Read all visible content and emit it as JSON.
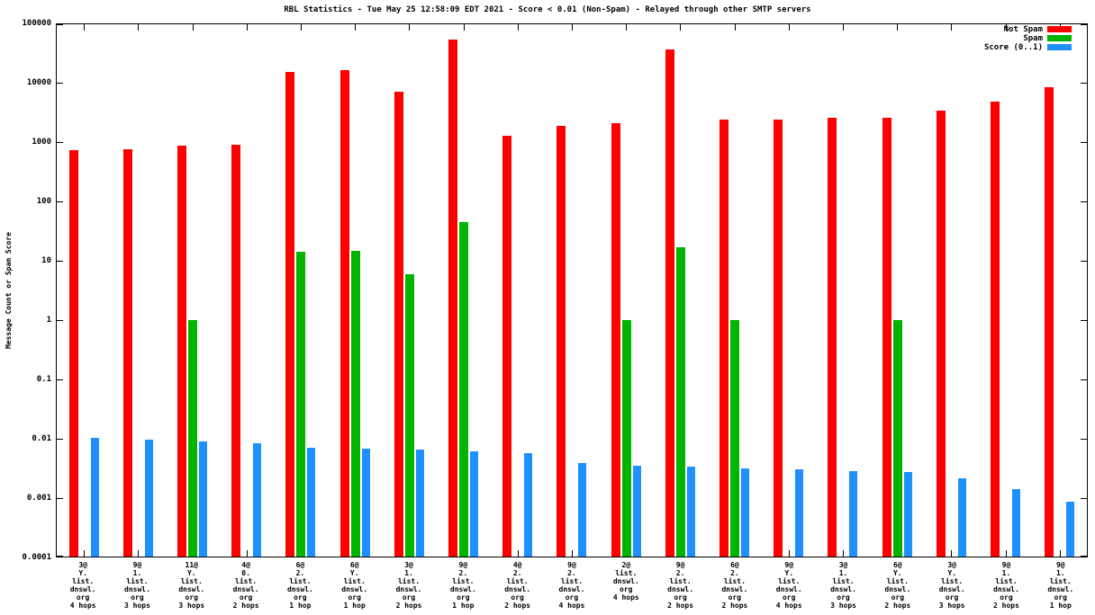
{
  "chart_data": {
    "type": "bar",
    "title": "RBL Statistics - Tue May 25 12:58:09 EDT 2021 - Score < 0.01 (Non-Spam) - Relayed through other SMTP servers",
    "ylabel": "Message Count or Spam Score",
    "xlabel": "",
    "y_scale": "log",
    "ylim": [
      0.0001,
      100000
    ],
    "y_ticks": [
      "100000",
      "10000",
      "1000",
      "100",
      "10",
      "1",
      "0.1",
      "0.01",
      "0.001",
      "0.0001"
    ],
    "grid": false,
    "legend_position": "top-right",
    "background": "#ffffff",
    "categories": [
      [
        "3@",
        "Y.",
        "list.",
        "dnswl.",
        "org",
        "4 hops"
      ],
      [
        "9@",
        "1.",
        "list.",
        "dnswl.",
        "org",
        "3 hops"
      ],
      [
        "11@",
        "Y.",
        "list.",
        "dnswl.",
        "org",
        "3 hops"
      ],
      [
        "4@",
        "0.",
        "list.",
        "dnswl.",
        "org",
        "2 hops"
      ],
      [
        "6@",
        "2.",
        "list.",
        "dnswl.",
        "org",
        "1 hop"
      ],
      [
        "6@",
        "Y.",
        "list.",
        "dnswl.",
        "org",
        "1 hop"
      ],
      [
        "3@",
        "1.",
        "list.",
        "dnswl.",
        "org",
        "2 hops"
      ],
      [
        "9@",
        "2.",
        "list.",
        "dnswl.",
        "org",
        "1 hop"
      ],
      [
        "4@",
        "2.",
        "list.",
        "dnswl.",
        "org",
        "2 hops"
      ],
      [
        "9@",
        "2.",
        "list.",
        "dnswl.",
        "org",
        "4 hops"
      ],
      [
        "2@",
        "list.",
        "dnswl.",
        "org",
        "4 hops"
      ],
      [
        "9@",
        "2.",
        "list.",
        "dnswl.",
        "org",
        "2 hops"
      ],
      [
        "6@",
        "2.",
        "list.",
        "dnswl.",
        "org",
        "2 hops"
      ],
      [
        "9@",
        "Y.",
        "list.",
        "dnswl.",
        "org",
        "4 hops"
      ],
      [
        "3@",
        "1.",
        "list.",
        "dnswl.",
        "org",
        "3 hops"
      ],
      [
        "6@",
        "Y.",
        "list.",
        "dnswl.",
        "org",
        "2 hops"
      ],
      [
        "3@",
        "Y.",
        "list.",
        "dnswl.",
        "org",
        "3 hops"
      ],
      [
        "9@",
        "1.",
        "list.",
        "dnswl.",
        "org",
        "2 hops"
      ],
      [
        "9@",
        "1.",
        "list.",
        "dnswl.",
        "org",
        "1 hop"
      ]
    ],
    "series": [
      {
        "name": "Not Spam",
        "color": "#ff0000",
        "values": [
          750,
          770,
          880,
          930,
          15500,
          17000,
          7200,
          56000,
          1300,
          1900,
          2100,
          38000,
          2450,
          2450,
          2650,
          2650,
          3500,
          4900,
          8700
        ]
      },
      {
        "name": "Spam",
        "color": "#00b400",
        "values": [
          0,
          0,
          1,
          0,
          14,
          15,
          6,
          46,
          0,
          0,
          1,
          17,
          1,
          0,
          0,
          1,
          0,
          0,
          0
        ]
      },
      {
        "name": "Score (0..1)",
        "color": "#1e90ff",
        "values": [
          0.01,
          0.0095,
          0.0088,
          0.0082,
          0.007,
          0.0066,
          0.0064,
          0.006,
          0.0056,
          0.0038,
          0.0034,
          0.0033,
          0.0031,
          0.003,
          0.0028,
          0.0027,
          0.0021,
          0.0014,
          0.00085
        ]
      }
    ]
  }
}
